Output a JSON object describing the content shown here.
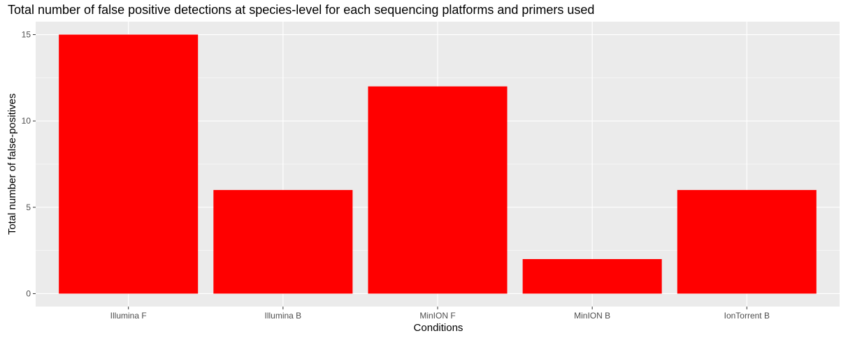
{
  "chart_data": {
    "type": "bar",
    "title": "Total number of false positive detections at species-level for each sequencing platforms and primers used",
    "xlabel": "Conditions",
    "ylabel": "Total number of false-positives",
    "categories": [
      "Illumina F",
      "Illumina B",
      "MinION F",
      "MinION B",
      "IonTorrent B"
    ],
    "values": [
      15,
      6,
      12,
      2,
      6
    ],
    "ylim": [
      -0.75,
      15.75
    ],
    "yticks": [
      0,
      5,
      10,
      15
    ],
    "grid": true,
    "legend": "none",
    "colors": {
      "bar": "#ff0000",
      "panel": "#ebebeb",
      "grid": "#ffffff",
      "tick_text": "#4d4d4d",
      "tick_mark": "#333333"
    }
  }
}
